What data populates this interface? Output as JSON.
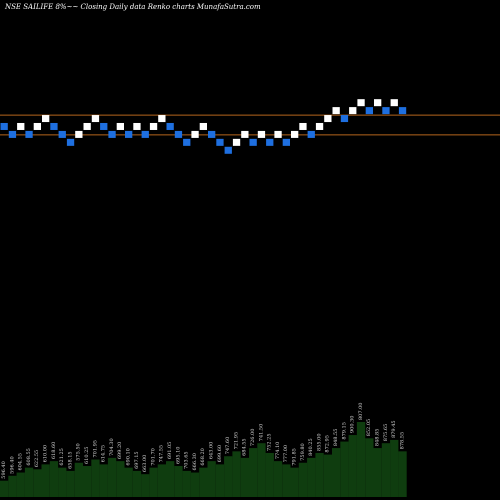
{
  "chart_data": {
    "type": "renko",
    "title": "NSE SAILIFE 8%~~ Closing Daily data  Renko  charts MunafaSutra.com",
    "colors": {
      "background": "#000000",
      "up_brick": "#ffffff",
      "down_brick": "#1e6fe0",
      "ref_line": "#b5651d",
      "volume": "#0f3d0f"
    },
    "reference_lines": [
      {
        "level": 10
      },
      {
        "level": 7.5
      }
    ],
    "bricks": [
      {
        "index": 0,
        "value": 8.5,
        "dir": "down"
      },
      {
        "index": 1,
        "value": 7.5,
        "dir": "down"
      },
      {
        "index": 2,
        "value": 8.5,
        "dir": "up"
      },
      {
        "index": 3,
        "value": 7.5,
        "dir": "down"
      },
      {
        "index": 4,
        "value": 8.5,
        "dir": "up"
      },
      {
        "index": 5,
        "value": 9.5,
        "dir": "up"
      },
      {
        "index": 6,
        "value": 8.5,
        "dir": "down"
      },
      {
        "index": 7,
        "value": 7.5,
        "dir": "down"
      },
      {
        "index": 8,
        "value": 6.5,
        "dir": "down"
      },
      {
        "index": 9,
        "value": 7.5,
        "dir": "up"
      },
      {
        "index": 10,
        "value": 8.5,
        "dir": "up"
      },
      {
        "index": 11,
        "value": 9.5,
        "dir": "up"
      },
      {
        "index": 12,
        "value": 8.5,
        "dir": "down"
      },
      {
        "index": 13,
        "value": 7.5,
        "dir": "down"
      },
      {
        "index": 14,
        "value": 8.5,
        "dir": "up"
      },
      {
        "index": 15,
        "value": 7.5,
        "dir": "down"
      },
      {
        "index": 16,
        "value": 8.5,
        "dir": "up"
      },
      {
        "index": 17,
        "value": 7.5,
        "dir": "down"
      },
      {
        "index": 18,
        "value": 8.5,
        "dir": "up"
      },
      {
        "index": 19,
        "value": 9.5,
        "dir": "up"
      },
      {
        "index": 20,
        "value": 8.5,
        "dir": "down"
      },
      {
        "index": 21,
        "value": 7.5,
        "dir": "down"
      },
      {
        "index": 22,
        "value": 6.5,
        "dir": "down"
      },
      {
        "index": 23,
        "value": 7.5,
        "dir": "up"
      },
      {
        "index": 24,
        "value": 8.5,
        "dir": "up"
      },
      {
        "index": 25,
        "value": 7.5,
        "dir": "down"
      },
      {
        "index": 26,
        "value": 6.5,
        "dir": "down"
      },
      {
        "index": 27,
        "value": 5.5,
        "dir": "down"
      },
      {
        "index": 28,
        "value": 6.5,
        "dir": "up"
      },
      {
        "index": 29,
        "value": 7.5,
        "dir": "up"
      },
      {
        "index": 30,
        "value": 6.5,
        "dir": "down"
      },
      {
        "index": 31,
        "value": 7.5,
        "dir": "up"
      },
      {
        "index": 32,
        "value": 6.5,
        "dir": "down"
      },
      {
        "index": 33,
        "value": 7.5,
        "dir": "up"
      },
      {
        "index": 34,
        "value": 6.5,
        "dir": "down"
      },
      {
        "index": 35,
        "value": 7.5,
        "dir": "up"
      },
      {
        "index": 36,
        "value": 8.5,
        "dir": "up"
      },
      {
        "index": 37,
        "value": 7.5,
        "dir": "down"
      },
      {
        "index": 38,
        "value": 8.5,
        "dir": "up"
      },
      {
        "index": 39,
        "value": 9.5,
        "dir": "up"
      },
      {
        "index": 40,
        "value": 10.5,
        "dir": "up"
      },
      {
        "index": 41,
        "value": 9.5,
        "dir": "down"
      },
      {
        "index": 42,
        "value": 10.5,
        "dir": "up"
      },
      {
        "index": 43,
        "value": 11.5,
        "dir": "up"
      },
      {
        "index": 44,
        "value": 10.5,
        "dir": "down"
      },
      {
        "index": 45,
        "value": 11.5,
        "dir": "up"
      },
      {
        "index": 46,
        "value": 10.5,
        "dir": "down"
      },
      {
        "index": 47,
        "value": 11.5,
        "dir": "up"
      },
      {
        "index": 48,
        "value": 10.5,
        "dir": "down"
      }
    ],
    "y_range": [
      -38.5,
      24.5
    ],
    "volume": {
      "values": [
        10,
        13,
        15,
        18,
        17,
        20,
        22,
        18,
        16,
        21,
        19,
        23,
        20,
        24,
        22,
        18,
        16,
        14,
        18,
        20,
        22,
        19,
        16,
        15,
        18,
        22,
        20,
        25,
        28,
        24,
        30,
        33,
        27,
        22,
        20,
        18,
        21,
        24,
        27,
        26,
        30,
        34,
        38,
        46,
        36,
        30,
        33,
        35,
        28
      ],
      "labels": [
        "596.40",
        "596.40",
        "604.55",
        "608.55",
        "622.55",
        "610.00",
        "618.60",
        "621.25",
        "658.15",
        "575.50",
        "610.25",
        "701.95",
        "614.75",
        "704.30",
        "699.20",
        "690.10",
        "697.15",
        "663.00",
        "701.70",
        "747.55",
        "691.05",
        "695.10",
        "703.65",
        "666.30",
        "668.20",
        "643.00",
        "699.60",
        "747.60",
        "721.95",
        "684.55",
        "726.00",
        "741.50",
        "752.25",
        "774.10",
        "777.00",
        "791.85",
        "759.80",
        "840.25",
        "855.00",
        "872.95",
        "848.55",
        "879.15",
        "900.30",
        "807.00",
        "852.05",
        "848.85",
        "875.65",
        "879.45",
        "878.55"
      ]
    }
  }
}
